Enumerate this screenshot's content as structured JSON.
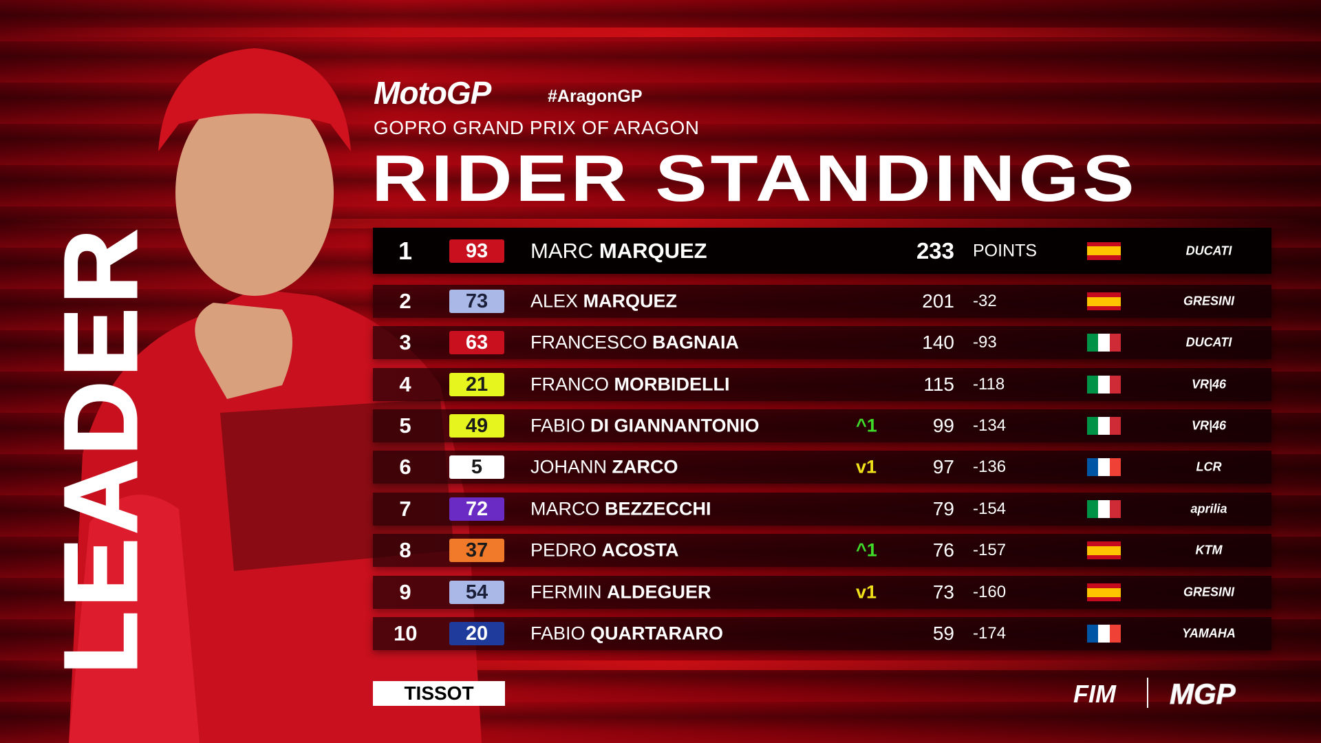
{
  "side_label": "LEADER",
  "header": {
    "logo": "MotoGP",
    "hashtag": "#AragonGP",
    "subtitle": "GOPRO GRAND PRIX OF ARAGON",
    "title": "RIDER STANDINGS"
  },
  "points_label": "POINTS",
  "rows": [
    {
      "pos": "1",
      "number": "93",
      "badge_bg": "#c8101e",
      "badge_fg": "#ffffff",
      "first": "MARC",
      "last": "MARQUEZ",
      "change": "",
      "points": "233",
      "gap": "",
      "flag": "spain",
      "team": "DUCATI"
    },
    {
      "pos": "2",
      "number": "73",
      "badge_bg": "#a9b8e6",
      "badge_fg": "#1b1f3a",
      "first": "ALEX",
      "last": "MARQUEZ",
      "change": "",
      "points": "201",
      "gap": "-32",
      "flag": "spain",
      "team": "GRESINI"
    },
    {
      "pos": "3",
      "number": "63",
      "badge_bg": "#c8101e",
      "badge_fg": "#ffffff",
      "first": "FRANCESCO",
      "last": "BAGNAIA",
      "change": "",
      "points": "140",
      "gap": "-93",
      "flag": "italy",
      "team": "DUCATI"
    },
    {
      "pos": "4",
      "number": "21",
      "badge_bg": "#e6f51e",
      "badge_fg": "#1a1a1a",
      "first": "FRANCO",
      "last": "MORBIDELLI",
      "change": "",
      "points": "115",
      "gap": "-118",
      "flag": "italy",
      "team": "VR|46"
    },
    {
      "pos": "5",
      "number": "49",
      "badge_bg": "#e6f51e",
      "badge_fg": "#1a1a1a",
      "first": "FABIO",
      "last": "DI GIANNANTONIO",
      "change": "^1",
      "change_color": "#3fdc2a",
      "points": "99",
      "gap": "-134",
      "flag": "italy",
      "team": "VR|46"
    },
    {
      "pos": "6",
      "number": "5",
      "badge_bg": "#ffffff",
      "badge_fg": "#1a1a1a",
      "first": "JOHANN",
      "last": "ZARCO",
      "change": "v1",
      "change_color": "#f2e21a",
      "points": "97",
      "gap": "-136",
      "flag": "france",
      "team": "LCR"
    },
    {
      "pos": "7",
      "number": "72",
      "badge_bg": "#6a2bc4",
      "badge_fg": "#ffffff",
      "first": "MARCO",
      "last": "BEZZECCHI",
      "change": "",
      "points": "79",
      "gap": "-154",
      "flag": "italy",
      "team": "aprilia"
    },
    {
      "pos": "8",
      "number": "37",
      "badge_bg": "#f07a2a",
      "badge_fg": "#1a1a1a",
      "first": "PEDRO",
      "last": "ACOSTA",
      "change": "^1",
      "change_color": "#3fdc2a",
      "points": "76",
      "gap": "-157",
      "flag": "spain",
      "team": "KTM"
    },
    {
      "pos": "9",
      "number": "54",
      "badge_bg": "#a9b8e6",
      "badge_fg": "#1b1f3a",
      "first": "FERMIN",
      "last": "ALDEGUER",
      "change": "v1",
      "change_color": "#f2e21a",
      "points": "73",
      "gap": "-160",
      "flag": "spain",
      "team": "GRESINI"
    },
    {
      "pos": "10",
      "number": "20",
      "badge_bg": "#1f3c9c",
      "badge_fg": "#ffffff",
      "first": "FABIO",
      "last": "QUARTARARO",
      "change": "",
      "points": "59",
      "gap": "-174",
      "flag": "france",
      "team": "YAMAHA"
    }
  ],
  "footer": {
    "sponsor": "TISSOT",
    "fim": "FIM",
    "mgp": "MGP"
  }
}
